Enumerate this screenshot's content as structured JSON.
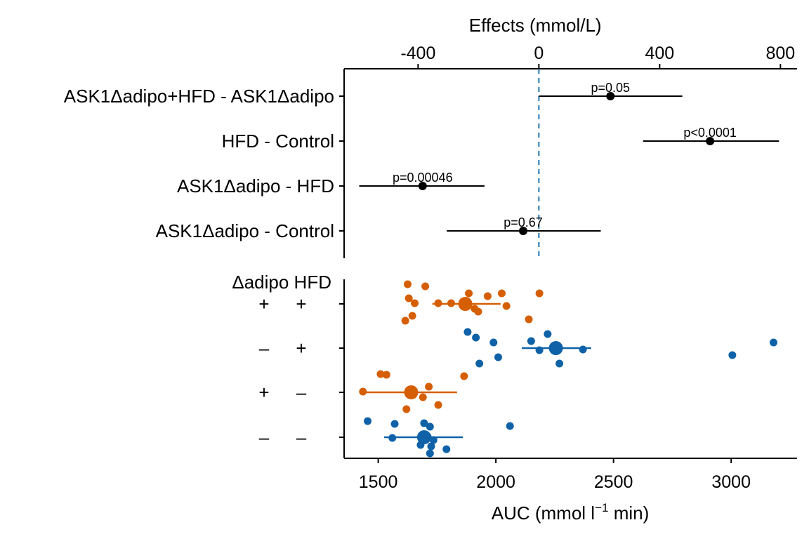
{
  "chart_data": [
    {
      "type": "forest",
      "top_axis_title": "Effects (mmol/L)",
      "x_ticks": [
        -400,
        0,
        400,
        800
      ],
      "xlim": [
        -645,
        855
      ],
      "reference_line": 0,
      "comparisons": [
        {
          "label": "ASK1Δadipo+HFD - ASK1Δadipo",
          "estimate": 237,
          "ci": [
            0,
            475
          ],
          "p_label": "p=0.05"
        },
        {
          "label": "HFD - Control",
          "estimate": 567,
          "ci": [
            345,
            795
          ],
          "p_label": "p<0.0001"
        },
        {
          "label": "ASK1Δadipo - HFD",
          "estimate": -385,
          "ci": [
            -595,
            -180
          ],
          "p_label": "p=0.00046"
        },
        {
          "label": "ASK1Δadipo - Control",
          "estimate": -52,
          "ci": [
            -305,
            205
          ],
          "p_label": "p=0.67"
        }
      ]
    },
    {
      "type": "dotplot",
      "xlabel_main": "AUC (mmol l",
      "xlabel_sup": "−1",
      "xlabel_tail": " min)",
      "x_ticks": [
        1500,
        2000,
        2500,
        3000
      ],
      "xlim": [
        1355,
        3280
      ],
      "factor_headers": [
        "Δadipo",
        "HFD"
      ],
      "groups": [
        {
          "adipo": "+",
          "hfd": "+",
          "color": "#D55E00",
          "mean": 1870,
          "interval": [
            1730,
            2020
          ],
          "points": [
            [
              1625,
              405
            ],
            [
              1700,
              408
            ],
            [
              1885,
              418
            ],
            [
              1965,
              422
            ],
            [
              2025,
              418
            ],
            [
              2185,
              418
            ],
            [
              1630,
              425
            ],
            [
              1655,
              432
            ],
            [
              1755,
              432
            ],
            [
              1810,
              432
            ],
            [
              1910,
              440
            ],
            [
              2045,
              436
            ],
            [
              1645,
              450
            ],
            [
              1615,
              457
            ],
            [
              1925,
              444
            ],
            [
              2140,
              455
            ]
          ]
        },
        {
          "adipo": "–",
          "hfd": "+",
          "color": "#0F62A8",
          "mean": 2255,
          "interval": [
            2110,
            2405
          ],
          "points": [
            [
              1880,
              473
            ],
            [
              1915,
              481
            ],
            [
              1990,
              488
            ],
            [
              2150,
              486
            ],
            [
              2220,
              476
            ],
            [
              2185,
              499
            ],
            [
              2370,
              498
            ],
            [
              3180,
              488
            ],
            [
              3005,
              506
            ],
            [
              2010,
              509
            ],
            [
              1930,
              518
            ],
            [
              2270,
              518
            ]
          ]
        },
        {
          "adipo": "+",
          "hfd": "–",
          "color": "#D55E00",
          "mean": 1640,
          "interval": [
            1435,
            1835
          ],
          "points": [
            [
              1510,
              533
            ],
            [
              1535,
              534
            ],
            [
              1865,
              536
            ],
            [
              1435,
              558
            ],
            [
              1715,
              551
            ],
            [
              1690,
              566
            ],
            [
              1755,
              577
            ],
            [
              1620,
              583
            ]
          ]
        },
        {
          "adipo": "–",
          "hfd": "–",
          "color": "#0F62A8",
          "mean": 1695,
          "interval": [
            1525,
            1860
          ],
          "points": [
            [
              1455,
              600
            ],
            [
              1570,
              604
            ],
            [
              1695,
              603
            ],
            [
              1720,
              608
            ],
            [
              2060,
              607
            ],
            [
              1560,
              624
            ],
            [
              1710,
              622
            ],
            [
              1735,
              627
            ],
            [
              1680,
              634
            ],
            [
              1725,
              636
            ],
            [
              1790,
              640
            ],
            [
              1720,
              646
            ]
          ]
        }
      ]
    }
  ]
}
